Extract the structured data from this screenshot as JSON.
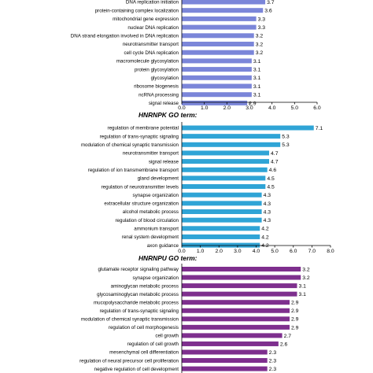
{
  "chart_data": [
    {
      "type": "bar",
      "orientation": "horizontal",
      "title": "",
      "color": "#7b86d9",
      "xlim": [
        0,
        6
      ],
      "ticks": [
        "0.0",
        "1.0",
        "2.0",
        "3.0",
        "4.0",
        "5.0",
        "6.0"
      ],
      "categories": [
        "DNA replication initiation",
        "protein-containing complex localization",
        "mitochondrial gene expression",
        "nuclear DNA replication",
        "DNA strand elongation involved in DNA replication",
        "neurotransmitter transport",
        "cell cycle DNA replication",
        "macromolecule glycosylation",
        "protein glycosylation",
        "glycosylation",
        "ribosome biogenesis",
        "ncRNA processing",
        "signal release"
      ],
      "values": [
        3.7,
        3.6,
        3.3,
        3.3,
        3.2,
        3.2,
        3.2,
        3.1,
        3.1,
        3.1,
        3.1,
        3.1,
        2.9
      ],
      "labels": [
        "3.7",
        "3.6",
        "3.3",
        "3.3",
        "3.2",
        "3.2",
        "3.2",
        "3.1",
        "3.1",
        "3.1",
        "3.1",
        "3.1",
        "2.9"
      ]
    },
    {
      "type": "bar",
      "orientation": "horizontal",
      "title": "HNRNPK GO term:",
      "color": "#2fa4d6",
      "xlim": [
        0,
        8
      ],
      "ticks": [
        "0.0",
        "1.0",
        "2.0",
        "3.0",
        "4.0",
        "5.0",
        "6.0",
        "7.0",
        "8.0"
      ],
      "categories": [
        "regulation of membrane potential",
        "regulation of trans-synaptic signaling",
        "modulation of chemical synaptic transmission",
        "neurotransmitter transport",
        "signal release",
        "regulation of ion transmembrane transport",
        "gland development",
        "regulation of neurotransmitter levels",
        "synapse organization",
        "extracellular structure organization",
        "alcohol metabolic process",
        "regulation of blood circulation",
        "ammonium transport",
        "renal system development",
        "axon guidance"
      ],
      "values": [
        7.1,
        5.3,
        5.3,
        4.7,
        4.7,
        4.6,
        4.5,
        4.5,
        4.3,
        4.3,
        4.3,
        4.3,
        4.2,
        4.2,
        4.2
      ],
      "labels": [
        "7.1",
        "5.3",
        "5.3",
        "4.7",
        "4.7",
        "4.6",
        "4.5",
        "4.5",
        "4.3",
        "4.3",
        "4.3",
        "4.3",
        "4.2",
        "4.2",
        "4.2"
      ]
    },
    {
      "type": "bar",
      "orientation": "horizontal",
      "title": "HNRNPU GO term:",
      "color": "#7e2f8e",
      "xlim": [
        0,
        4
      ],
      "categories": [
        "glutamate receptor signaling pathway",
        "synapse organization",
        "aminoglycan metabolic process",
        "glycosaminoglycan metabolic process",
        "mucopolysaccharide metabolic process",
        "regulation of trans-synaptic signaling",
        "modulation of chemical synaptic transmission",
        "regulation of cell morphogenesis",
        "cell growth",
        "regulation of cell growth",
        "mesenchymal cell differentiation",
        "regulation of neural precursor cell proliferation",
        "negative regulation of cell development",
        "developmental growth involved in morphogenesis"
      ],
      "values": [
        3.2,
        3.2,
        3.1,
        3.1,
        2.9,
        2.9,
        2.9,
        2.9,
        2.7,
        2.6,
        2.3,
        2.3,
        2.3,
        2.3
      ],
      "labels": [
        "3.2",
        "3.2",
        "3.1",
        "3.1",
        "2.9",
        "2.9",
        "2.9",
        "2.9",
        "2.7",
        "2.6",
        "2.3",
        "2.3",
        "2.3",
        "2.3"
      ]
    }
  ]
}
